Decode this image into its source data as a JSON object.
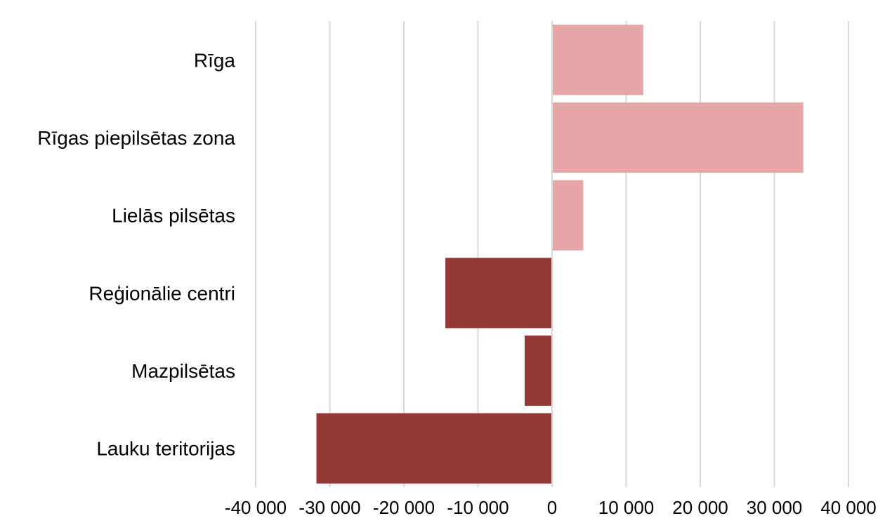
{
  "chart_data": {
    "type": "bar",
    "orientation": "horizontal",
    "categories": [
      "Rīga",
      "Rīgas piepilsētas zona",
      "Lielās pilsētas",
      "Reģionālie centri",
      "Mazpilsētas",
      "Lauku teritorijas"
    ],
    "values": [
      12300,
      33900,
      4200,
      -14400,
      -3700,
      -31800
    ],
    "positive_color": "#e6a6a8",
    "negative_color": "#943838",
    "xlim": [
      -40000,
      40000
    ],
    "x_ticks": [
      -40000,
      -30000,
      -20000,
      -10000,
      0,
      10000,
      20000,
      30000,
      40000
    ],
    "x_tick_labels": [
      "-40 000",
      "-30 000",
      "-20 000",
      "-10 000",
      "0",
      "10 000",
      "20 000",
      "30 000",
      "40 000"
    ],
    "grid": "vertical",
    "title": "",
    "xlabel": "",
    "ylabel": "",
    "legend": "none"
  }
}
